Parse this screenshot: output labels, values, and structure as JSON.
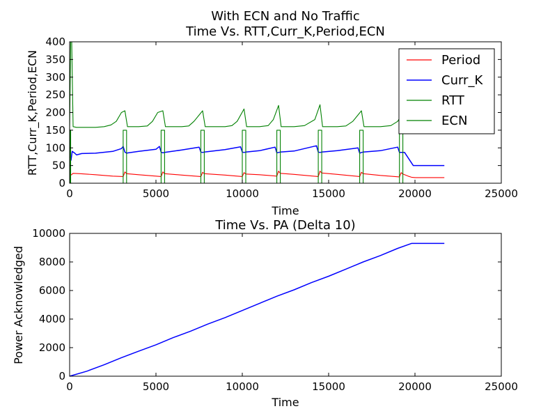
{
  "chart_data": [
    {
      "type": "line",
      "title": "With ECN and No Traffic",
      "subtitle": "Time Vs. RTT,Curr_K,Period,ECN",
      "xlabel": "Time",
      "ylabel": "RTT,Curr_K,Period,ECN",
      "xlim": [
        0,
        25000
      ],
      "ylim": [
        0,
        400
      ],
      "xticks": [
        0,
        5000,
        10000,
        15000,
        20000,
        25000
      ],
      "yticks": [
        0,
        50,
        100,
        150,
        200,
        250,
        300,
        350,
        400
      ],
      "grid": false,
      "legend_position": "top-right",
      "series": [
        {
          "name": "Period",
          "color": "#ff0000",
          "x": [
            0,
            200,
            600,
            1500,
            2500,
            3100,
            3200,
            3300,
            4000,
            5000,
            5300,
            5400,
            5500,
            6500,
            7600,
            7700,
            7800,
            9000,
            10000,
            10100,
            10200,
            11000,
            12000,
            12100,
            12200,
            13000,
            14400,
            14500,
            14600,
            15500,
            16800,
            16900,
            17000,
            18000,
            19100,
            19200,
            19300,
            19600,
            19800,
            20000,
            21700
          ],
          "y": [
            20,
            28,
            27,
            24,
            20,
            19,
            32,
            27,
            24,
            20,
            19,
            32,
            27,
            23,
            19,
            31,
            27,
            23,
            19,
            30,
            26,
            24,
            20,
            34,
            28,
            25,
            19,
            34,
            29,
            25,
            19,
            31,
            27,
            22,
            18,
            30,
            26,
            20,
            17,
            16,
            16
          ]
        },
        {
          "name": "Curr_K",
          "color": "#0000ff",
          "x": [
            0,
            80,
            150,
            300,
            400,
            700,
            1500,
            2500,
            3000,
            3100,
            3200,
            3300,
            3400,
            4000,
            5000,
            5200,
            5300,
            5400,
            5500,
            6500,
            7500,
            7600,
            7700,
            7800,
            9000,
            9900,
            10000,
            10100,
            10200,
            11000,
            11900,
            12000,
            12100,
            12200,
            13000,
            14300,
            14400,
            14500,
            14600,
            15500,
            16700,
            16800,
            16900,
            17000,
            17500,
            18000,
            19000,
            19100,
            19200,
            19400,
            19900,
            21700
          ],
          "y": [
            75,
            65,
            90,
            85,
            80,
            84,
            85,
            90,
            98,
            104,
            88,
            85,
            86,
            90,
            96,
            104,
            88,
            86,
            87,
            94,
            102,
            88,
            87,
            88,
            95,
            103,
            88,
            87,
            88,
            92,
            102,
            86,
            87,
            88,
            91,
            106,
            88,
            87,
            88,
            92,
            100,
            85,
            87,
            88,
            90,
            92,
            102,
            87,
            87,
            87,
            50,
            50
          ]
        },
        {
          "name": "RTT",
          "color": "#008000",
          "x": [
            0,
            60,
            120,
            200,
            400,
            1000,
            1500,
            2000,
            2400,
            2700,
            3000,
            3200,
            3350,
            3500,
            4000,
            4500,
            4800,
            5100,
            5400,
            5550,
            5700,
            6500,
            6900,
            7200,
            7700,
            7850,
            8000,
            9000,
            9400,
            9700,
            10100,
            10250,
            10400,
            11000,
            11500,
            11800,
            12100,
            12250,
            12400,
            13000,
            13600,
            14200,
            14500,
            14650,
            14800,
            15500,
            16000,
            16400,
            16900,
            17050,
            17200,
            18000,
            18600,
            19000,
            19300
          ],
          "y": [
            150,
            400,
            400,
            160,
            158,
            158,
            158,
            160,
            165,
            175,
            200,
            205,
            160,
            160,
            160,
            162,
            175,
            200,
            205,
            160,
            160,
            160,
            162,
            175,
            205,
            160,
            160,
            160,
            163,
            175,
            210,
            160,
            160,
            160,
            163,
            180,
            220,
            160,
            160,
            160,
            163,
            180,
            222,
            160,
            160,
            160,
            162,
            175,
            205,
            160,
            160,
            160,
            163,
            175,
            200
          ]
        },
        {
          "name": "ECN",
          "color": "#008000",
          "x": [
            0,
            20,
            20,
            60,
            60,
            3100,
            3100,
            3300,
            3300,
            5300,
            5300,
            5500,
            5500,
            7600,
            7600,
            7800,
            7800,
            10000,
            10000,
            10200,
            10200,
            12000,
            12000,
            12200,
            12200,
            14400,
            14400,
            14600,
            14600,
            16800,
            16800,
            17000,
            17000,
            19100,
            19100,
            19300,
            19300,
            21700
          ],
          "y": [
            0,
            0,
            150,
            150,
            0,
            0,
            150,
            150,
            0,
            0,
            150,
            150,
            0,
            0,
            150,
            150,
            0,
            0,
            150,
            150,
            0,
            0,
            150,
            150,
            0,
            0,
            150,
            150,
            0,
            0,
            150,
            150,
            0,
            0,
            150,
            150,
            0,
            0
          ]
        }
      ]
    },
    {
      "type": "line",
      "title": "Time Vs. PA (Delta 10)",
      "xlabel": "Time",
      "ylabel": "Power Acknowledged",
      "xlim": [
        0,
        25000
      ],
      "ylim": [
        0,
        10000
      ],
      "xticks": [
        0,
        5000,
        10000,
        15000,
        20000,
        25000
      ],
      "yticks": [
        0,
        2000,
        4000,
        6000,
        8000,
        10000
      ],
      "grid": false,
      "series": [
        {
          "color": "#0000ff",
          "x": [
            0,
            1000,
            2000,
            3000,
            4000,
            5000,
            6000,
            7000,
            8000,
            9000,
            10000,
            11000,
            12000,
            13000,
            14000,
            15000,
            16000,
            17000,
            18000,
            19000,
            19800,
            21700
          ],
          "y": [
            0,
            350,
            800,
            1300,
            1750,
            2200,
            2700,
            3150,
            3650,
            4100,
            4600,
            5100,
            5600,
            6050,
            6550,
            7000,
            7500,
            8000,
            8450,
            8950,
            9300,
            9300
          ]
        }
      ]
    }
  ]
}
